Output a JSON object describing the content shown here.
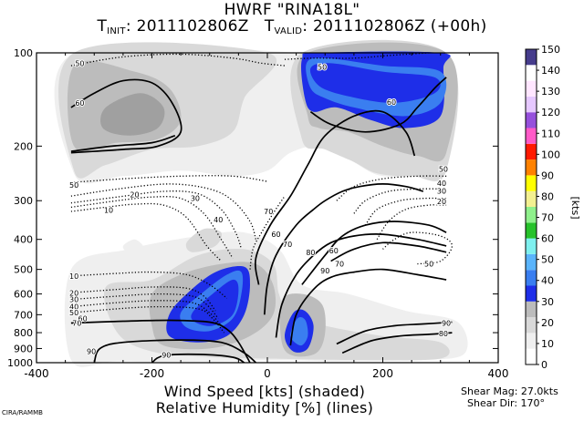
{
  "header": {
    "title": "HWRF \"RINA18L\"",
    "init_prefix": "T",
    "init_sub": "INIT",
    "init_value": ": 2011102806Z",
    "valid_prefix": "T",
    "valid_sub": "VALID",
    "valid_value": ": 2011102806Z (+00h)"
  },
  "footer": {
    "xtitle_line1": "Wind Speed [kts] (shaded)",
    "xtitle_line2": "Relative Humidity [%] (lines)",
    "shear_mag": "Shear Mag: 27.0kts",
    "shear_dir": "Shear Dir:  170°",
    "credit": "CIRA/RAMMB"
  },
  "chart_data": {
    "type": "contour",
    "x_range": [
      -400,
      400
    ],
    "x_ticks": [
      -400,
      -200,
      0,
      200,
      400
    ],
    "y_scale": "log",
    "y_range": [
      1000,
      100
    ],
    "y_ticks": [
      100,
      200,
      300,
      400,
      500,
      600,
      700,
      800,
      900,
      1000
    ],
    "colorbar": {
      "unit_label": "[kts]",
      "levels": [
        0,
        10,
        20,
        30,
        40,
        50,
        60,
        70,
        80,
        90,
        100,
        110,
        120,
        130,
        140,
        150
      ],
      "colors": [
        "#ffffff",
        "#f0f0f0",
        "#d8d8d8",
        "#bebebe",
        "#a4a4a4",
        "#0a32e6",
        "#3c8cf0",
        "#50b4ff",
        "#78f0f0",
        "#1ec81e",
        "#8cf08c",
        "#f0f096",
        "#ffff00",
        "#ff8200",
        "#ff0000",
        "#ff5ac8",
        "#9650dc",
        "#e6c8ff",
        "#ffe6ff",
        "#ffffff",
        "#463c8c"
      ]
    },
    "wind_speed_shaded": [
      {
        "region": "upper-right jet core",
        "x": [
          80,
          300
        ],
        "p": [
          100,
          180
        ],
        "max": 50
      },
      {
        "region": "lower-left core",
        "x": [
          -170,
          -30
        ],
        "p": [
          480,
          850
        ],
        "max": 50
      },
      {
        "region": "lower-right core",
        "x": [
          35,
          80
        ],
        "p": [
          650,
          930
        ],
        "max": 40
      }
    ],
    "rh_contours": {
      "levels": [
        10,
        20,
        30,
        40,
        50,
        60,
        70,
        80,
        90
      ],
      "dotted_below": 60,
      "labels": [
        {
          "text": "50",
          "x": -325,
          "p": 108
        },
        {
          "text": "60",
          "x": -325,
          "p": 145
        },
        {
          "text": "50",
          "x": 95,
          "p": 111
        },
        {
          "text": "60",
          "x": 215,
          "p": 144
        },
        {
          "text": "50",
          "x": 305,
          "p": 237
        },
        {
          "text": "40",
          "x": 302,
          "p": 263
        },
        {
          "text": "30",
          "x": 302,
          "p": 279
        },
        {
          "text": "20",
          "x": 302,
          "p": 302
        },
        {
          "text": "50",
          "x": -335,
          "p": 267
        },
        {
          "text": "20",
          "x": -230,
          "p": 287
        },
        {
          "text": "10",
          "x": -275,
          "p": 322
        },
        {
          "text": "30",
          "x": -125,
          "p": 295
        },
        {
          "text": "40",
          "x": -85,
          "p": 345
        },
        {
          "text": "70",
          "x": 2,
          "p": 325
        },
        {
          "text": "60",
          "x": 15,
          "p": 385
        },
        {
          "text": "70",
          "x": 35,
          "p": 415
        },
        {
          "text": "80",
          "x": 75,
          "p": 440
        },
        {
          "text": "90",
          "x": 100,
          "p": 505
        },
        {
          "text": "60",
          "x": 115,
          "p": 435
        },
        {
          "text": "70",
          "x": 125,
          "p": 480
        },
        {
          "text": "50",
          "x": 280,
          "p": 480
        },
        {
          "text": "10",
          "x": -335,
          "p": 525
        },
        {
          "text": "20",
          "x": -335,
          "p": 595
        },
        {
          "text": "30",
          "x": -335,
          "p": 625
        },
        {
          "text": "40",
          "x": -335,
          "p": 660
        },
        {
          "text": "50",
          "x": -335,
          "p": 690
        },
        {
          "text": "60",
          "x": -320,
          "p": 720
        },
        {
          "text": "70",
          "x": -330,
          "p": 745
        },
        {
          "text": "90",
          "x": 310,
          "p": 745
        },
        {
          "text": "80",
          "x": 305,
          "p": 805
        },
        {
          "text": "90",
          "x": -175,
          "p": 945
        },
        {
          "text": "90",
          "x": -305,
          "p": 920
        }
      ]
    }
  }
}
